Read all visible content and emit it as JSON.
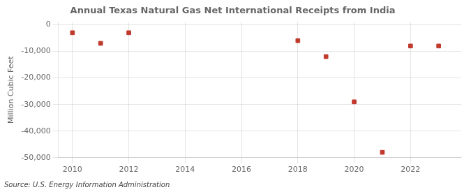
{
  "chart_data": {
    "type": "scatter",
    "title": "Annual Texas Natural Gas Net International Receipts from India",
    "y_label": "Million Cubic Feet",
    "annotation": "Source: U.S. Energy Information Administration",
    "x": [
      2010,
      2011,
      2012,
      2018,
      2019,
      2020,
      2021,
      2022,
      2023
    ],
    "values": [
      -3000,
      -7000,
      -3000,
      -6000,
      -12000,
      -29000,
      -48000,
      -8000,
      -8000
    ],
    "color": "#c0392b",
    "marker": "square",
    "xlim": [
      2009.5,
      2023.8
    ],
    "xticks": [
      2010,
      2012,
      2014,
      2016,
      2018,
      2020,
      2022
    ],
    "ylim": [
      -50000,
      1000
    ],
    "yticks": [
      0,
      {
        "value": -10000,
        "label": "-10,000"
      },
      {
        "value": -20000,
        "label": "-20,000"
      },
      {
        "value": -30000,
        "label": "-30,000"
      },
      {
        "value": -40000,
        "label": "-40,000"
      },
      {
        "value": -50000,
        "label": "-50,000"
      }
    ],
    "grid": true
  }
}
